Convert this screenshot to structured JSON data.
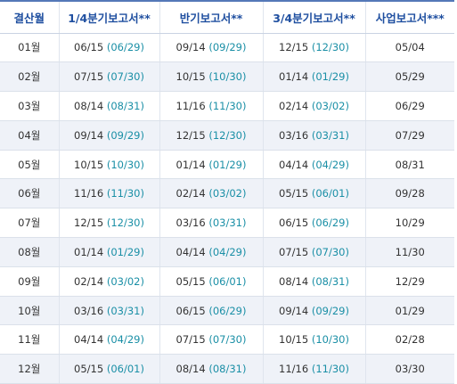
{
  "headers": [
    "결산월",
    "1/4분기보고서**",
    "반기보고서**",
    "3/4분기보고서**",
    "사업보고서***"
  ],
  "rows": [
    {
      "month": "01월",
      "q1": "06/15",
      "q1_ext": "(06/29)",
      "half": "09/14",
      "half_ext": "(09/29)",
      "q3": "12/15",
      "q3_ext": "(12/30)",
      "annual": "05/04"
    },
    {
      "month": "02월",
      "q1": "07/15",
      "q1_ext": "(07/30)",
      "half": "10/15",
      "half_ext": "(10/30)",
      "q3": "01/14",
      "q3_ext": "(01/29)",
      "annual": "05/29"
    },
    {
      "month": "03월",
      "q1": "08/14",
      "q1_ext": "(08/31)",
      "half": "11/16",
      "half_ext": "(11/30)",
      "q3": "02/14",
      "q3_ext": "(03/02)",
      "annual": "06/29"
    },
    {
      "month": "04월",
      "q1": "09/14",
      "q1_ext": "(09/29)",
      "half": "12/15",
      "half_ext": "(12/30)",
      "q3": "03/16",
      "q3_ext": "(03/31)",
      "annual": "07/29"
    },
    {
      "month": "05월",
      "q1": "10/15",
      "q1_ext": "(10/30)",
      "half": "01/14",
      "half_ext": "(01/29)",
      "q3": "04/14",
      "q3_ext": "(04/29)",
      "annual": "08/31"
    },
    {
      "month": "06월",
      "q1": "11/16",
      "q1_ext": "(11/30)",
      "half": "02/14",
      "half_ext": "(03/02)",
      "q3": "05/15",
      "q3_ext": "(06/01)",
      "annual": "09/28"
    },
    {
      "month": "07월",
      "q1": "12/15",
      "q1_ext": "(12/30)",
      "half": "03/16",
      "half_ext": "(03/31)",
      "q3": "06/15",
      "q3_ext": "(06/29)",
      "annual": "10/29"
    },
    {
      "month": "08월",
      "q1": "01/14",
      "q1_ext": "(01/29)",
      "half": "04/14",
      "half_ext": "(04/29)",
      "q3": "07/15",
      "q3_ext": "(07/30)",
      "annual": "11/30"
    },
    {
      "month": "09월",
      "q1": "02/14",
      "q1_ext": "(03/02)",
      "half": "05/15",
      "half_ext": "(06/01)",
      "q3": "08/14",
      "q3_ext": "(08/31)",
      "annual": "12/29"
    },
    {
      "month": "10월",
      "q1": "03/16",
      "q1_ext": "(03/31)",
      "half": "06/15",
      "half_ext": "(06/29)",
      "q3": "09/14",
      "q3_ext": "(09/29)",
      "annual": "01/29"
    },
    {
      "month": "11월",
      "q1": "04/14",
      "q1_ext": "(04/29)",
      "half": "07/15",
      "half_ext": "(07/30)",
      "q3": "10/15",
      "q3_ext": "(10/30)",
      "annual": "02/28"
    },
    {
      "month": "12월",
      "q1": "05/15",
      "q1_ext": "(06/01)",
      "half": "08/14",
      "half_ext": "(08/31)",
      "q3": "11/16",
      "q3_ext": "(11/30)",
      "annual": "03/30"
    }
  ],
  "colors": {
    "header_text": "#1f4fa0",
    "header_rule": "#5478b8",
    "alt_row_bg": "#eff2f8",
    "extended_date": "#1a8fa6",
    "body_text": "#333333"
  }
}
